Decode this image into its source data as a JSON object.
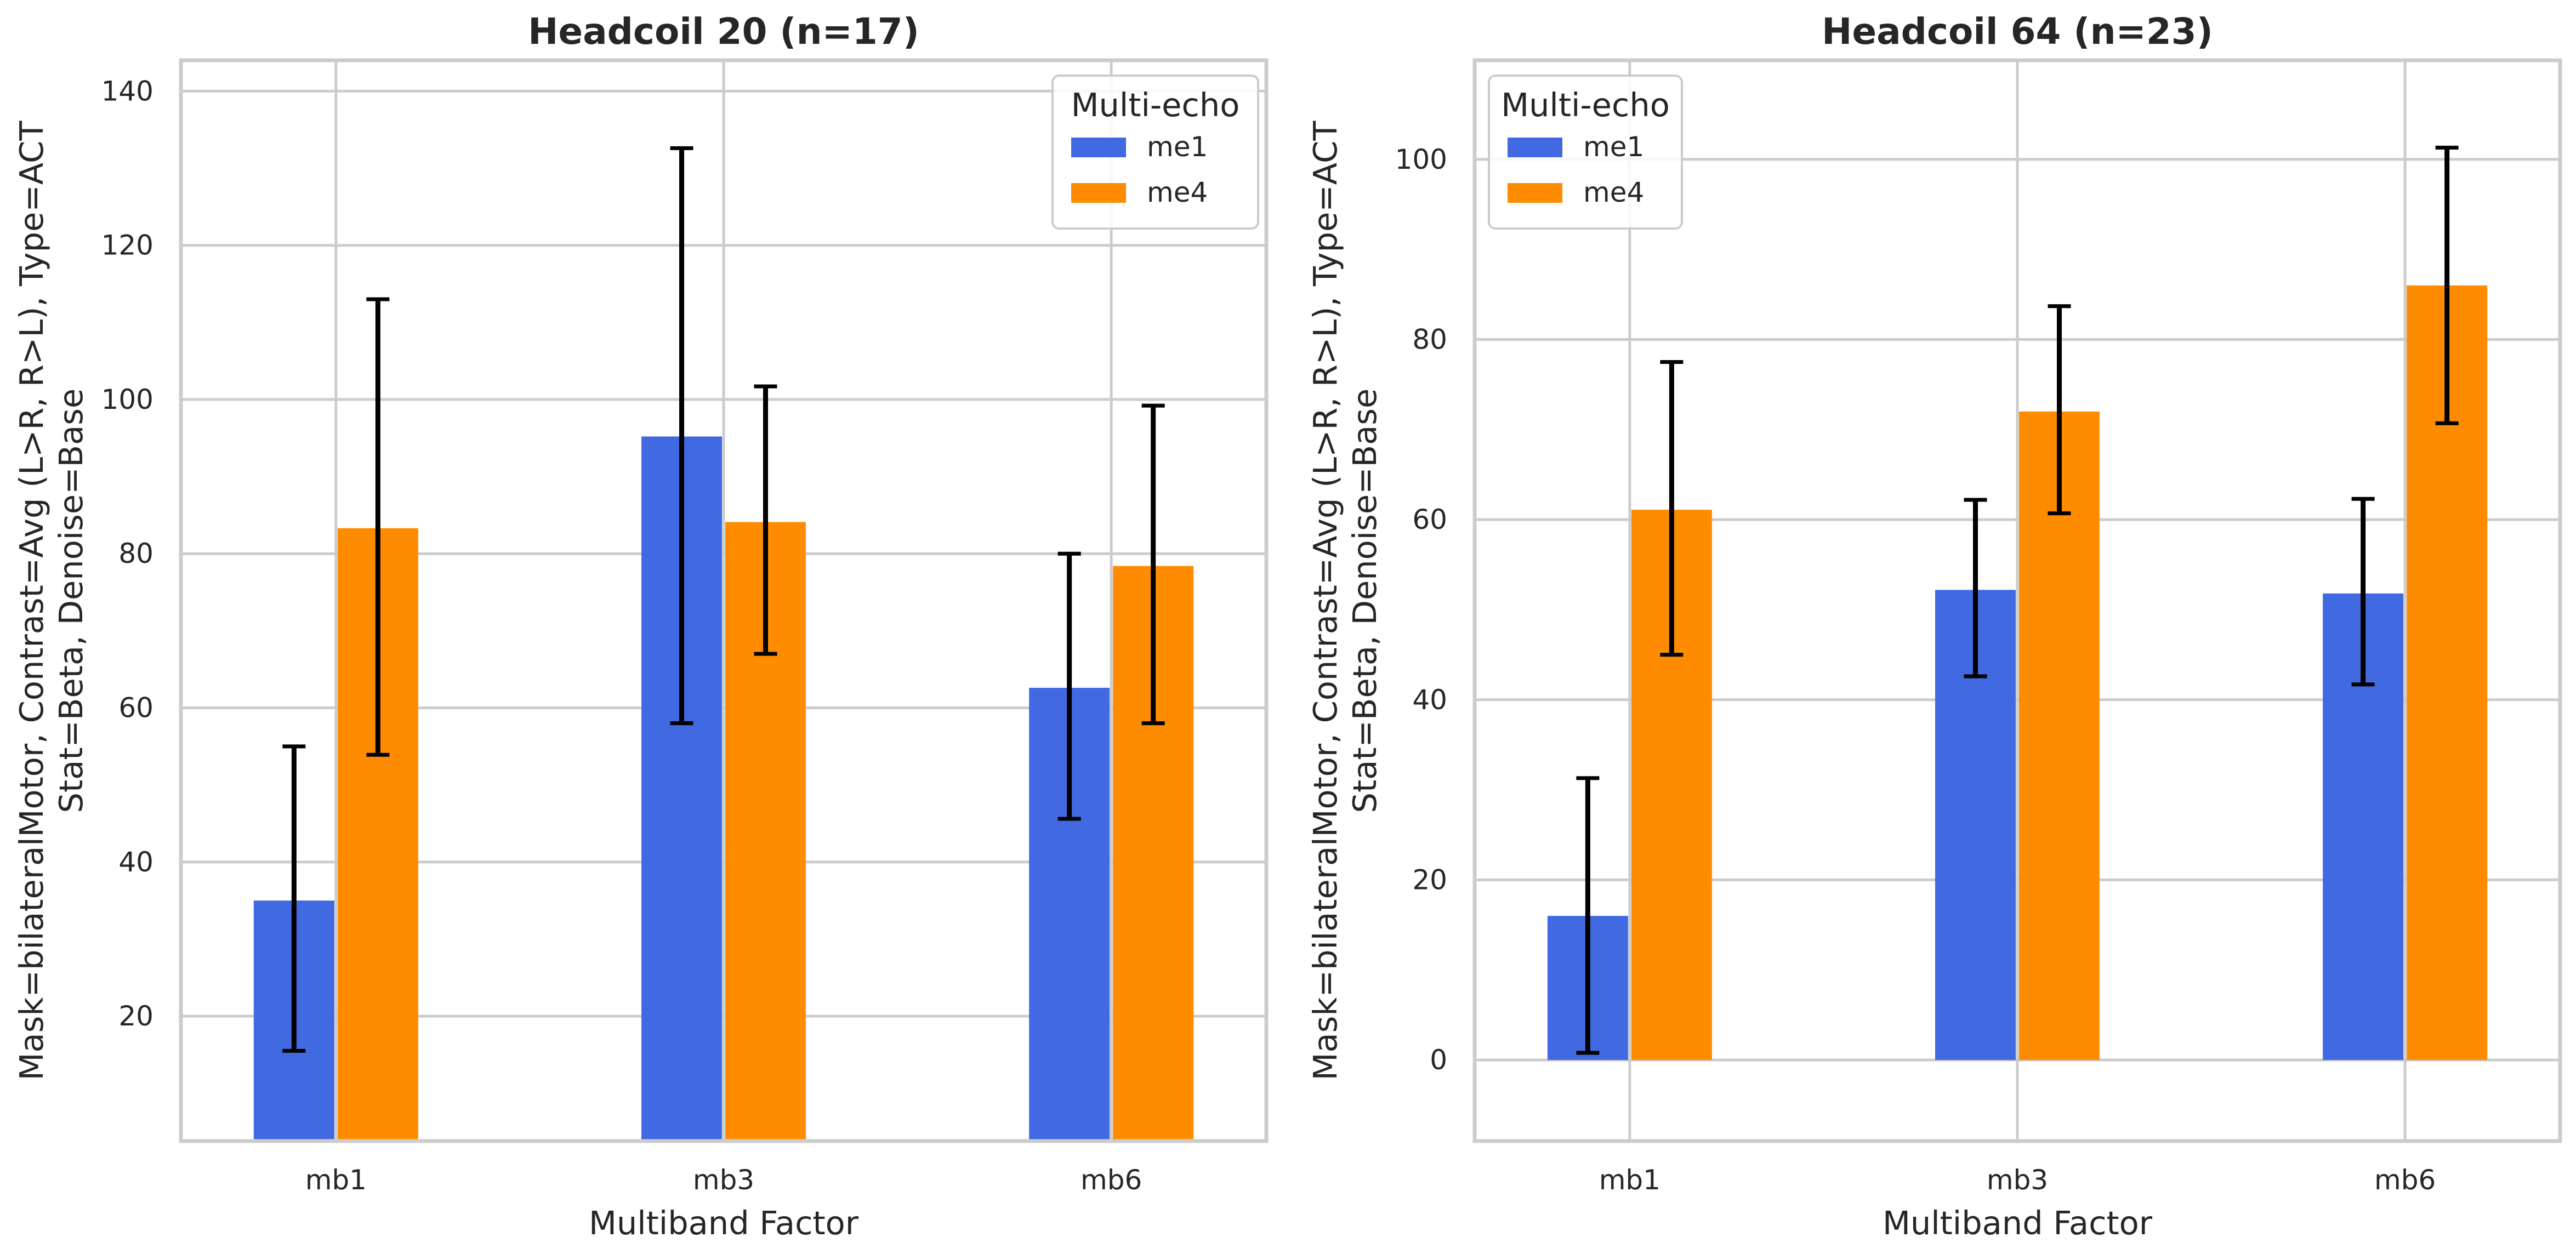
{
  "chart_data": [
    {
      "type": "bar",
      "title": "Headcoil 20 (n=17)",
      "xlabel": "Multiband Factor",
      "ylabel": [
        "Mask=bilateralMotor, Contrast=Avg (L>R, R>L), Type=ACT",
        "Stat=Beta, Denoise=Base"
      ],
      "categories": [
        "mb1",
        "mb3",
        "mb6"
      ],
      "ylim": [
        3.8,
        144
      ],
      "yticks": [
        20,
        40,
        60,
        80,
        100,
        120,
        140
      ],
      "grid": true,
      "legend": {
        "title": "Multi-echo",
        "position": "top-right"
      },
      "series": [
        {
          "name": "me1",
          "color": "#4169E1",
          "values": [
            35,
            95.2,
            62.6
          ],
          "err_low": [
            15.5,
            58,
            45.6
          ],
          "err_high": [
            55,
            132.6,
            80
          ]
        },
        {
          "name": "me4",
          "color": "#FF8C00",
          "values": [
            83.3,
            84.1,
            78.4
          ],
          "err_low": [
            53.9,
            67,
            58
          ],
          "err_high": [
            113,
            101.7,
            99.2
          ]
        }
      ]
    },
    {
      "type": "bar",
      "title": "Headcoil 64 (n=23)",
      "xlabel": "Multiband Factor",
      "ylabel": [
        "Mask=bilateralMotor, Contrast=Avg (L>R, R>L), Type=ACT",
        "Stat=Beta, Denoise=Base"
      ],
      "categories": [
        "mb1",
        "mb3",
        "mb6"
      ],
      "ylim": [
        -9,
        111
      ],
      "yticks": [
        0,
        20,
        40,
        60,
        80,
        100
      ],
      "grid": true,
      "legend": {
        "title": "Multi-echo",
        "position": "top-left"
      },
      "series": [
        {
          "name": "me1",
          "color": "#4169E1",
          "values": [
            16,
            52.2,
            51.8
          ],
          "err_low": [
            0.8,
            42.6,
            41.7
          ],
          "err_high": [
            31.3,
            62.2,
            62.3
          ]
        },
        {
          "name": "me4",
          "color": "#FF8C00",
          "values": [
            61.1,
            72,
            86
          ],
          "err_low": [
            45,
            60.7,
            70.7
          ],
          "err_high": [
            77.5,
            83.7,
            101.3
          ]
        }
      ]
    }
  ]
}
